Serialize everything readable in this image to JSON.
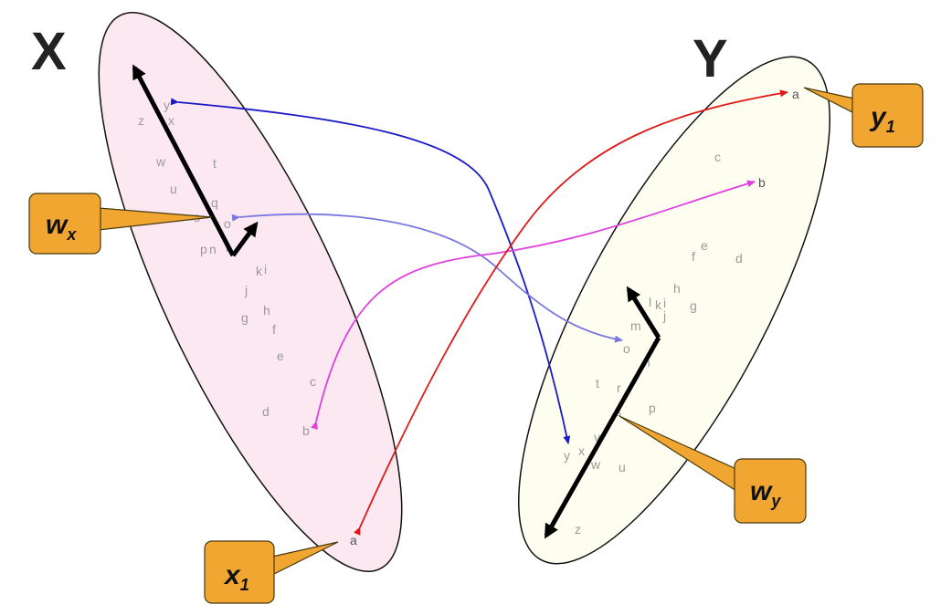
{
  "titles": {
    "x": "X",
    "y": "Y"
  },
  "callouts": {
    "wx": {
      "main": "w",
      "sub": "x"
    },
    "wy": {
      "main": "w",
      "sub": "y"
    },
    "x1": {
      "main": "x",
      "sub": "1"
    },
    "y1": {
      "main": "y",
      "sub": "1"
    }
  },
  "x_points": [
    "y",
    "z",
    "x",
    "w",
    "t",
    "u",
    "q",
    "s",
    "o",
    "p",
    "n",
    "r",
    "k",
    "i",
    "j",
    "g",
    "h",
    "f",
    "e",
    "c",
    "d",
    "b",
    "a"
  ],
  "y_points": [
    "a",
    "c",
    "b",
    "f",
    "e",
    "d",
    "h",
    "k",
    "l",
    "i",
    "j",
    "g",
    "m",
    "o",
    "n",
    "t",
    "r",
    "s",
    "p",
    "y",
    "x",
    "v",
    "w",
    "u",
    "z"
  ],
  "colors": {
    "x_ellipse_fill": "#fce8f1",
    "y_ellipse_fill": "#fdfdf0",
    "callout": "#f0a630",
    "arrow_blue": "#1a1ac8",
    "arrow_light_blue": "#7878e0",
    "arrow_magenta": "#e040e0",
    "arrow_red": "#e01818"
  }
}
